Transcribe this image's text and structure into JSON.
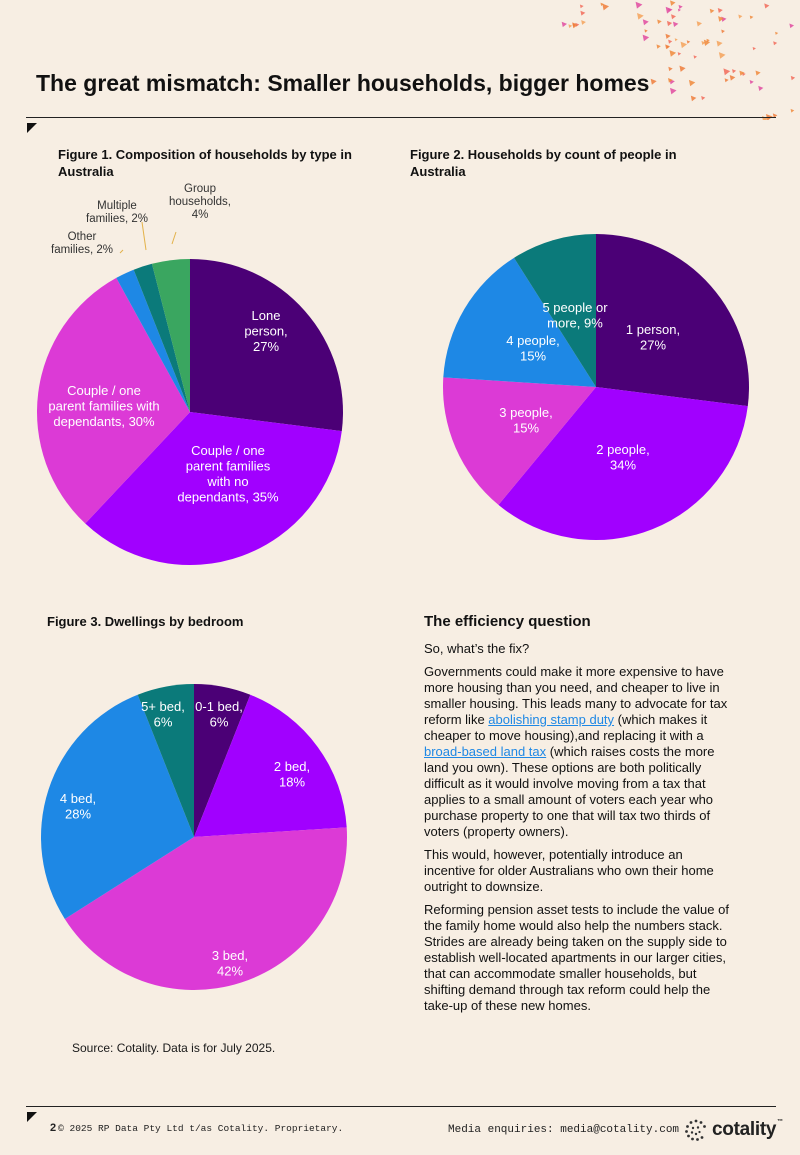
{
  "title": "The great mismatch: Smaller households, bigger homes",
  "figure1": {
    "title_line1": "Figure 1. Composition of households by type in",
    "title_line2": "Australia"
  },
  "figure2": {
    "title_line1": "Figure 2. Households by count of people in",
    "title_line2": "Australia"
  },
  "figure3": {
    "title": "Figure 3. Dwellings by bedroom"
  },
  "chart_data": [
    {
      "type": "pie",
      "title": "Figure 1. Composition of households by type in Australia",
      "slices": [
        {
          "label": "Lone person",
          "value": 27,
          "display": [
            "Lone",
            "person,",
            "27%"
          ],
          "color": "#4b0076"
        },
        {
          "label": "Couple / one parent families with no dependants",
          "value": 35,
          "display": [
            "Couple / one",
            "parent families",
            "with no",
            "dependants, 35%"
          ],
          "color": "#a100ff"
        },
        {
          "label": "Couple / one parent families with dependants",
          "value": 30,
          "display": [
            "Couple / one",
            "parent families with",
            "dependants, 30%"
          ],
          "color": "#dc3ad6"
        },
        {
          "label": "Other families",
          "value": 2,
          "display": [
            "Other",
            "families, 2%"
          ],
          "color": "#1e88e5"
        },
        {
          "label": "Multiple families",
          "value": 2,
          "display": [
            "Multiple",
            "families, 2%"
          ],
          "color": "#0b7a7a"
        },
        {
          "label": "Group households",
          "value": 4,
          "display": [
            "Group",
            "households,",
            "4%"
          ],
          "color": "#3aa660"
        }
      ]
    },
    {
      "type": "pie",
      "title": "Figure 2. Households by count of people in Australia",
      "slices": [
        {
          "label": "1 person",
          "value": 27,
          "display": [
            "1 person,",
            "27%"
          ],
          "color": "#4b0076"
        },
        {
          "label": "2 people",
          "value": 34,
          "display": [
            "2 people,",
            "34%"
          ],
          "color": "#a100ff"
        },
        {
          "label": "3 people",
          "value": 15,
          "display": [
            "3 people,",
            "15%"
          ],
          "color": "#dc3ad6"
        },
        {
          "label": "4 people",
          "value": 15,
          "display": [
            "4 people,",
            "15%"
          ],
          "color": "#1e88e5"
        },
        {
          "label": "5 people or more",
          "value": 9,
          "display": [
            "5 people or",
            "more, 9%"
          ],
          "color": "#0b7a7a"
        }
      ]
    },
    {
      "type": "pie",
      "title": "Figure 3. Dwellings by bedroom",
      "slices": [
        {
          "label": "0-1 bed",
          "value": 6,
          "display": [
            "0-1 bed,",
            "6%"
          ],
          "color": "#4b0076"
        },
        {
          "label": "2 bed",
          "value": 18,
          "display": [
            "2 bed,",
            "18%"
          ],
          "color": "#a100ff"
        },
        {
          "label": "3 bed",
          "value": 42,
          "display": [
            "3 bed,",
            "42%"
          ],
          "color": "#dc3ad6"
        },
        {
          "label": "4 bed",
          "value": 28,
          "display": [
            "4 bed,",
            "28%"
          ],
          "color": "#1e88e5"
        },
        {
          "label": "5+ bed",
          "value": 6,
          "display": [
            "5+ bed,",
            "6%"
          ],
          "color": "#0b7a7a"
        }
      ]
    }
  ],
  "article": {
    "heading": "The efficiency question",
    "p1": "So, what’s the fix?",
    "p2_a": "Governments could make it more expensive to have more housing than you need, and cheaper to live in smaller housing. This leads many to advocate for tax reform like ",
    "p2_link1": "abolishing stamp duty",
    "p2_b": " (which makes it cheaper to move housing),and replacing it with a ",
    "p2_link2": "broad-based land tax",
    "p2_c": " (which raises costs the more land you own). These options are both politically difficult as it would involve moving from a tax that applies to a small amount of voters each year who purchase property to one that will tax two thirds of voters (property owners).",
    "p3": "This would, however, potentially introduce an incentive for older Australians who own their home outright to downsize.",
    "p4": "Reforming pension asset tests to include the value of the family home would also help the numbers stack. Strides are already being taken on the supply side to establish well-located apartments in our larger cities, that can accommodate smaller households, but shifting demand through tax reform could help the take-up of these new homes."
  },
  "source": "Source: Cotality. Data is for July 2025.",
  "footer": {
    "page_number": "2",
    "copyright": "© 2025 RP Data Pty Ltd t/as Cotality. Proprietary.",
    "media": "Media enquiries: media@cotality.com",
    "logo_text": "cotality",
    "logo_tm": "™"
  },
  "colors": {
    "background": "#f7eee3",
    "deep_purple": "#4b0076",
    "violet": "#a100ff",
    "magenta": "#dc3ad6",
    "blue": "#1e88e5",
    "teal": "#0b7a7a",
    "green": "#3aa660",
    "accent_orange": "#f08a3c"
  }
}
